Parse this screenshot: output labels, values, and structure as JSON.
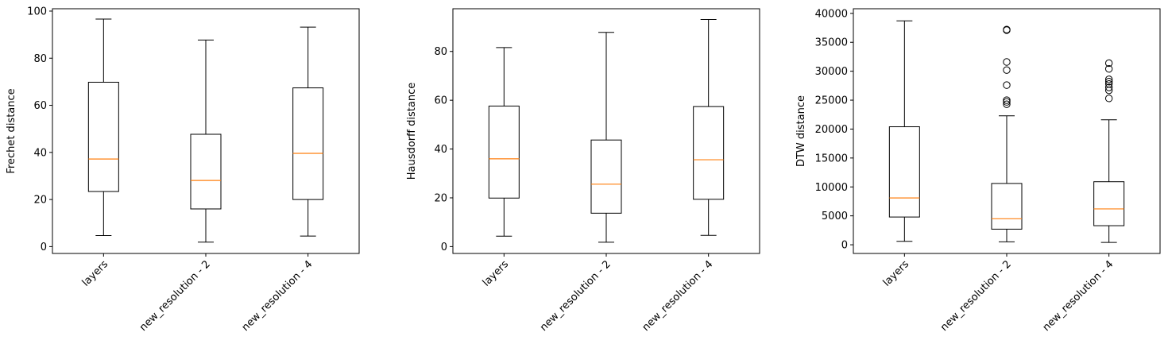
{
  "chart_data": [
    {
      "type": "box",
      "ylabel": "Frechet distance",
      "categories": [
        "layers",
        "new_resolution - 2",
        "new_resolution - 4"
      ],
      "ylim": [
        -2.9,
        101
      ],
      "yticks": [
        0,
        20,
        40,
        60,
        80,
        100
      ],
      "boxes": [
        {
          "whislo": 4.7,
          "q1": 23.4,
          "med": 37.2,
          "q3": 69.8,
          "whishi": 96.6,
          "fliers": []
        },
        {
          "whislo": 1.9,
          "q1": 16.0,
          "med": 28.1,
          "q3": 47.7,
          "whishi": 87.7,
          "fliers": []
        },
        {
          "whislo": 4.5,
          "q1": 20.0,
          "med": 39.6,
          "q3": 67.4,
          "whishi": 93.2,
          "fliers": []
        }
      ]
    },
    {
      "type": "box",
      "ylabel": "Hausdorff distance",
      "categories": [
        "layers",
        "new_resolution - 2",
        "new_resolution - 4"
      ],
      "ylim": [
        -2.8,
        97.5
      ],
      "yticks": [
        0,
        20,
        40,
        60,
        80
      ],
      "boxes": [
        {
          "whislo": 4.3,
          "q1": 19.9,
          "med": 36.0,
          "q3": 57.6,
          "whishi": 81.6,
          "fliers": []
        },
        {
          "whislo": 1.8,
          "q1": 13.7,
          "med": 25.6,
          "q3": 43.7,
          "whishi": 87.8,
          "fliers": []
        },
        {
          "whislo": 4.6,
          "q1": 19.4,
          "med": 35.6,
          "q3": 57.4,
          "whishi": 93.1,
          "fliers": []
        }
      ]
    },
    {
      "type": "box",
      "ylabel": "DTW distance",
      "categories": [
        "layers",
        "new_resolution - 2",
        "new_resolution - 4"
      ],
      "ylim": [
        -1500,
        40800
      ],
      "yticks": [
        0,
        5000,
        10000,
        15000,
        20000,
        25000,
        30000,
        35000,
        40000
      ],
      "boxes": [
        {
          "whislo": 600,
          "q1": 4800,
          "med": 8100,
          "q3": 20400,
          "whishi": 38700,
          "fliers": []
        },
        {
          "whislo": 500,
          "q1": 2700,
          "med": 4500,
          "q3": 10600,
          "whishi": 22300,
          "fliers": [
            24300,
            24700,
            25000,
            27600,
            30200,
            31600,
            37100,
            37200
          ]
        },
        {
          "whislo": 400,
          "q1": 3300,
          "med": 6200,
          "q3": 10900,
          "whishi": 21600,
          "fliers": [
            25300,
            26700,
            27200,
            27800,
            28200,
            28600,
            30400,
            31400
          ]
        }
      ]
    }
  ],
  "style": {
    "box_color": "#000000",
    "median_color": "#ff7f0e",
    "axis_color": "#000000"
  }
}
